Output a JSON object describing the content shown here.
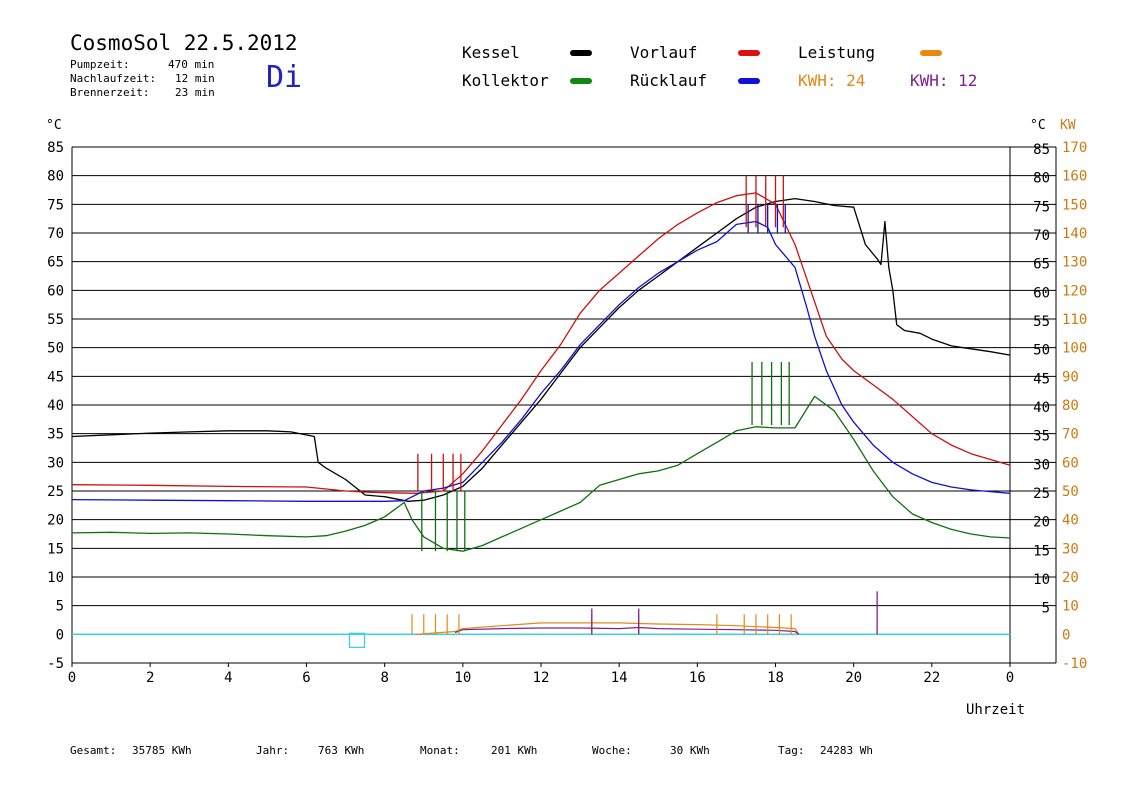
{
  "header": {
    "title": "CosmoSol 22.5.2012",
    "day": "Di",
    "stats": [
      {
        "label": "Pumpzeit:",
        "value": "470 min"
      },
      {
        "label": "Nachlaufzeit:",
        "value": "12 min"
      },
      {
        "label": "Brennerzeit:",
        "value": "23 min"
      }
    ]
  },
  "legend": {
    "kessel": "Kessel",
    "vorlauf": "Vorlauf",
    "leistung": "Leistung",
    "kollektor": "Kollektor",
    "ruecklauf": "Rücklauf",
    "kwh1": "KWH: 24",
    "kwh2": "KWH: 12"
  },
  "axes": {
    "left_unit": "°C",
    "right_unit": "°C",
    "right_unit2": "KW",
    "xlabel": "Uhrzeit"
  },
  "footer": {
    "gesamt_label": "Gesamt:",
    "gesamt_value": "35785 KWh",
    "jahr_label": "Jahr:",
    "jahr_value": "763 KWh",
    "monat_label": "Monat:",
    "monat_value": "201 KWh",
    "woche_label": "Woche:",
    "woche_value": "30 KWh",
    "tag_label": "Tag:",
    "tag_value": "24283 Wh"
  },
  "colors": {
    "kessel": "#000000",
    "vorlauf": "#cc1111",
    "ruecklauf": "#1010cc",
    "kollektor": "#107010",
    "leistung": "#e08a1a",
    "purple": "#802090",
    "cyan": "#40d0d8",
    "title_blue": "#2222cc",
    "right_axis": "#cc7a10"
  },
  "chart_data": {
    "type": "line",
    "x_ticks": [
      "0",
      "2",
      "4",
      "6",
      "8",
      "10",
      "12",
      "14",
      "16",
      "18",
      "20",
      "22",
      "0"
    ],
    "y_ticks_left": [
      "85",
      "80",
      "75",
      "70",
      "65",
      "60",
      "55",
      "50",
      "45",
      "40",
      "35",
      "30",
      "25",
      "20",
      "15",
      "10",
      "5",
      "0",
      "-5"
    ],
    "y_ticks_right_c": [
      "85",
      "80",
      "75",
      "70",
      "65",
      "60",
      "55",
      "50",
      "45",
      "40",
      "35",
      "30",
      "25",
      "20",
      "15",
      "10",
      "5"
    ],
    "y_ticks_right_kw": [
      "170",
      "160",
      "150",
      "140",
      "130",
      "120",
      "110",
      "100",
      "90",
      "80",
      "70",
      "60",
      "50",
      "40",
      "30",
      "20",
      "10",
      "0",
      "-10"
    ],
    "xlim": [
      0,
      24
    ],
    "ylim": [
      -5,
      85
    ],
    "series": [
      {
        "name": "Kessel",
        "key": "kessel",
        "points": [
          [
            0,
            34.5
          ],
          [
            1,
            34.8
          ],
          [
            2,
            35.1
          ],
          [
            3,
            35.3
          ],
          [
            4,
            35.5
          ],
          [
            5,
            35.5
          ],
          [
            5.6,
            35.3
          ],
          [
            6.2,
            34.5
          ],
          [
            6.3,
            30
          ],
          [
            6.5,
            29
          ],
          [
            7,
            27
          ],
          [
            7.5,
            24.3
          ],
          [
            8,
            24.0
          ],
          [
            8.6,
            23.2
          ],
          [
            9,
            23.4
          ],
          [
            9.5,
            24.3
          ],
          [
            10,
            25.8
          ],
          [
            10.5,
            29
          ],
          [
            11,
            33
          ],
          [
            11.5,
            37
          ],
          [
            12,
            41
          ],
          [
            12.5,
            45.5
          ],
          [
            13,
            50
          ],
          [
            13.5,
            53.5
          ],
          [
            14,
            57
          ],
          [
            14.5,
            60
          ],
          [
            15,
            62.5
          ],
          [
            15.5,
            65
          ],
          [
            16,
            67.5
          ],
          [
            16.5,
            70
          ],
          [
            17,
            72.5
          ],
          [
            17.5,
            74.5
          ],
          [
            18,
            75.5
          ],
          [
            18.5,
            76
          ],
          [
            19,
            75.5
          ],
          [
            19.5,
            74.8
          ],
          [
            20,
            74.5
          ],
          [
            20.3,
            68
          ],
          [
            20.6,
            65.5
          ],
          [
            20.7,
            64.5
          ],
          [
            20.8,
            72
          ],
          [
            20.9,
            64
          ],
          [
            21,
            60
          ],
          [
            21.1,
            54
          ],
          [
            21.3,
            53
          ],
          [
            21.7,
            52.5
          ],
          [
            22,
            51.5
          ],
          [
            22.5,
            50.3
          ],
          [
            23,
            49.8
          ],
          [
            23.5,
            49.3
          ],
          [
            24,
            48.7
          ]
        ]
      },
      {
        "name": "Vorlauf",
        "key": "vorlauf",
        "points": [
          [
            0,
            26.1
          ],
          [
            2,
            26
          ],
          [
            4,
            25.8
          ],
          [
            6,
            25.7
          ],
          [
            7,
            25
          ],
          [
            7.5,
            24.8
          ],
          [
            8,
            24.7
          ],
          [
            8.8,
            24.6
          ],
          [
            9.5,
            25
          ],
          [
            10,
            28
          ],
          [
            10.5,
            32
          ],
          [
            11,
            36.5
          ],
          [
            11.5,
            41
          ],
          [
            12,
            46
          ],
          [
            12.5,
            50.5
          ],
          [
            13,
            56
          ],
          [
            13.5,
            60
          ],
          [
            14,
            63
          ],
          [
            14.5,
            66
          ],
          [
            15,
            69
          ],
          [
            15.5,
            71.5
          ],
          [
            16,
            73.5
          ],
          [
            16.5,
            75.3
          ],
          [
            17,
            76.5
          ],
          [
            17.5,
            77
          ],
          [
            18,
            75
          ],
          [
            18.5,
            68
          ],
          [
            18.8,
            62
          ],
          [
            19,
            58
          ],
          [
            19.3,
            52
          ],
          [
            19.7,
            48
          ],
          [
            20,
            46
          ],
          [
            20.5,
            43.5
          ],
          [
            21,
            41
          ],
          [
            21.5,
            38
          ],
          [
            22,
            35
          ],
          [
            22.5,
            33
          ],
          [
            23,
            31.5
          ],
          [
            23.5,
            30.5
          ],
          [
            24,
            29.5
          ]
        ]
      },
      {
        "name": "Rücklauf",
        "key": "ruecklauf",
        "points": [
          [
            0,
            23.5
          ],
          [
            2,
            23.4
          ],
          [
            4,
            23.3
          ],
          [
            6,
            23.2
          ],
          [
            7,
            23.2
          ],
          [
            8,
            23.2
          ],
          [
            8.5,
            23.3
          ],
          [
            9,
            25
          ],
          [
            9.5,
            25.5
          ],
          [
            10,
            26.5
          ],
          [
            10.5,
            30
          ],
          [
            11,
            33.5
          ],
          [
            11.5,
            37.5
          ],
          [
            12,
            42
          ],
          [
            12.5,
            46
          ],
          [
            13,
            50.5
          ],
          [
            13.5,
            54
          ],
          [
            14,
            57.5
          ],
          [
            14.5,
            60.5
          ],
          [
            15,
            63
          ],
          [
            15.5,
            65
          ],
          [
            16,
            67
          ],
          [
            16.5,
            68.5
          ],
          [
            17,
            71.5
          ],
          [
            17.5,
            72
          ],
          [
            17.8,
            71
          ],
          [
            18,
            68
          ],
          [
            18.5,
            64
          ],
          [
            18.8,
            57
          ],
          [
            19,
            52
          ],
          [
            19.3,
            46
          ],
          [
            19.7,
            40
          ],
          [
            20,
            37
          ],
          [
            20.5,
            33
          ],
          [
            21,
            30
          ],
          [
            21.5,
            28
          ],
          [
            22,
            26.5
          ],
          [
            22.5,
            25.7
          ],
          [
            23,
            25.2
          ],
          [
            23.5,
            24.9
          ],
          [
            24,
            24.6
          ]
        ]
      },
      {
        "name": "Kollektor",
        "key": "kollektor",
        "points": [
          [
            0,
            17.7
          ],
          [
            1,
            17.8
          ],
          [
            2,
            17.6
          ],
          [
            3,
            17.7
          ],
          [
            4,
            17.5
          ],
          [
            5,
            17.2
          ],
          [
            6,
            17
          ],
          [
            6.5,
            17.2
          ],
          [
            7,
            18
          ],
          [
            7.5,
            19
          ],
          [
            8,
            20.5
          ],
          [
            8.5,
            23
          ],
          [
            8.7,
            20
          ],
          [
            9,
            17
          ],
          [
            9.5,
            15
          ],
          [
            10,
            14.5
          ],
          [
            10.5,
            15.5
          ],
          [
            11,
            17
          ],
          [
            11.5,
            18.5
          ],
          [
            12,
            20
          ],
          [
            12.5,
            21.5
          ],
          [
            13,
            23
          ],
          [
            13.5,
            26
          ],
          [
            14,
            27
          ],
          [
            14.5,
            28
          ],
          [
            15,
            28.5
          ],
          [
            15.5,
            29.5
          ],
          [
            16,
            31.5
          ],
          [
            16.5,
            33.5
          ],
          [
            17,
            35.5
          ],
          [
            17.5,
            36.2
          ],
          [
            18,
            36
          ],
          [
            18.5,
            36
          ],
          [
            19,
            41.5
          ],
          [
            19.5,
            39
          ],
          [
            20,
            34
          ],
          [
            20.5,
            28.5
          ],
          [
            21,
            24
          ],
          [
            21.5,
            21
          ],
          [
            22,
            19.5
          ],
          [
            22.5,
            18.3
          ],
          [
            23,
            17.5
          ],
          [
            23.5,
            17
          ],
          [
            24,
            16.8
          ]
        ]
      }
    ],
    "spikes": [
      {
        "key": "vorlauf",
        "x": [
          8.85,
          9.2,
          9.5,
          9.75,
          9.95
        ],
        "top": 31.5,
        "base": 25
      },
      {
        "key": "kollektor",
        "x": [
          8.95,
          9.3,
          9.6,
          9.85,
          10.05
        ],
        "top": 25,
        "base": 14.5
      },
      {
        "key": "vorlauf",
        "x": [
          17.25,
          17.5,
          17.75,
          18.0,
          18.2
        ],
        "top": 80,
        "base": 71
      },
      {
        "key": "ruecklauf",
        "x": [
          17.3,
          17.55,
          17.8,
          18.05,
          18.25
        ],
        "top": 75,
        "base": 70
      },
      {
        "key": "kollektor",
        "x": [
          17.4,
          17.65,
          17.9,
          18.15,
          18.35
        ],
        "top": 47.5,
        "base": 36.5
      }
    ],
    "leistung": {
      "key": "leistung",
      "points": [
        [
          8.8,
          0
        ],
        [
          9.8,
          0.5
        ],
        [
          10,
          1
        ],
        [
          11,
          1.5
        ],
        [
          12,
          2
        ],
        [
          13,
          2
        ],
        [
          14,
          2
        ],
        [
          15,
          1.8
        ],
        [
          16,
          1.7
        ],
        [
          17,
          1.5
        ],
        [
          18,
          1.2
        ],
        [
          18.5,
          1
        ],
        [
          18.6,
          0
        ]
      ]
    },
    "leistung_purple": {
      "key": "purple",
      "points": [
        [
          9.8,
          0.3
        ],
        [
          10,
          0.8
        ],
        [
          11,
          1
        ],
        [
          12,
          1.1
        ],
        [
          13,
          1.1
        ],
        [
          14,
          1.0
        ],
        [
          14.5,
          1.2
        ],
        [
          15,
          1.0
        ],
        [
          16,
          0.9
        ],
        [
          17,
          0.8
        ],
        [
          18,
          0.7
        ],
        [
          18.5,
          0.5
        ],
        [
          18.6,
          0
        ]
      ]
    },
    "baseline": 0
  }
}
